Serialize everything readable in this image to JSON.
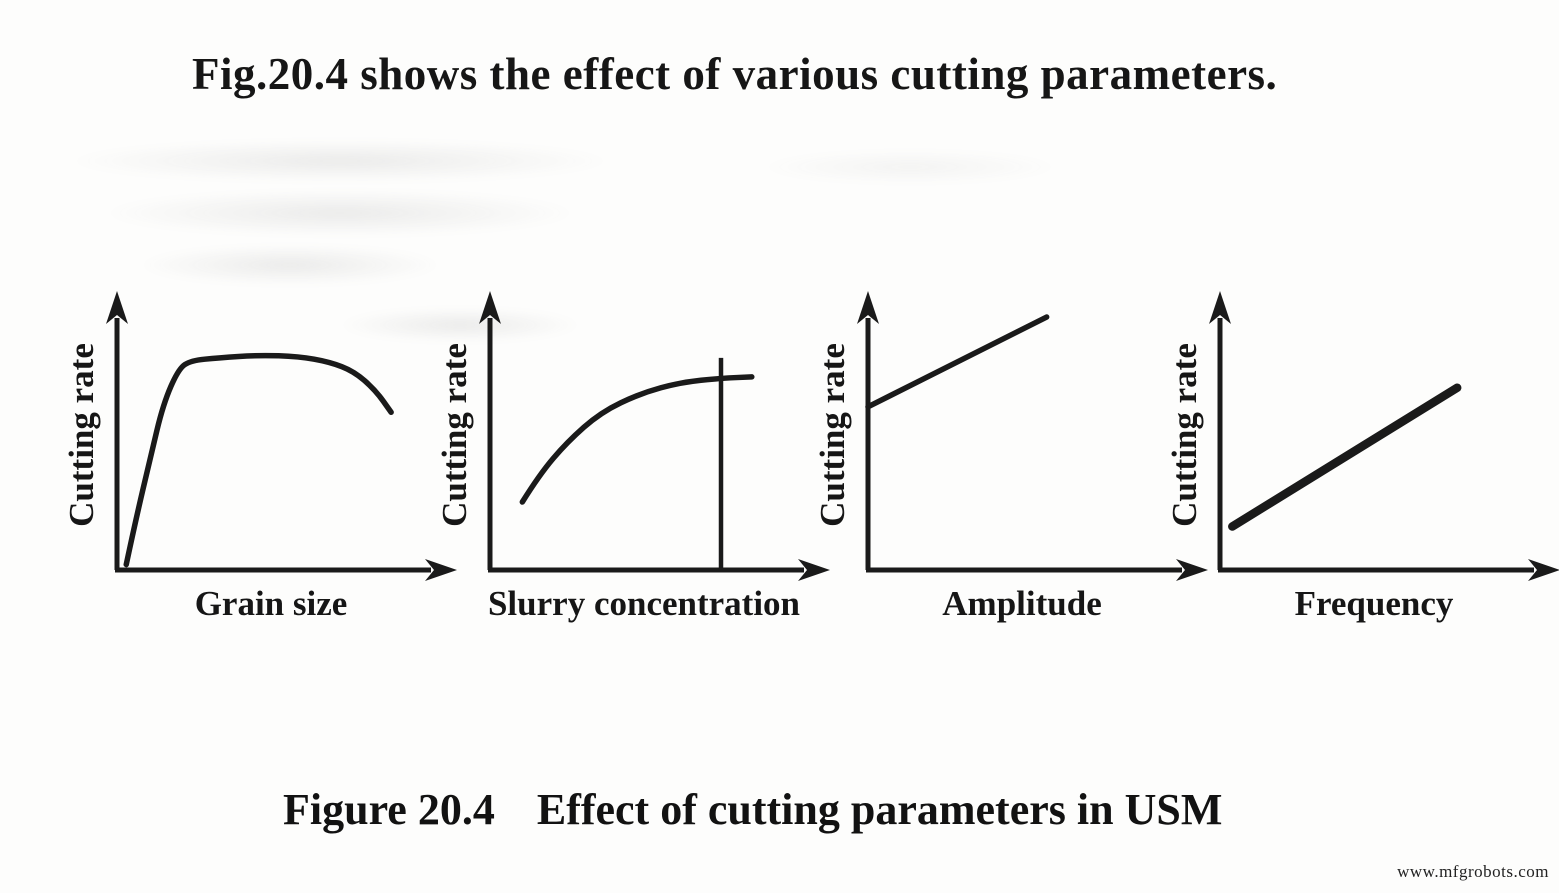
{
  "page": {
    "heading": "Fig.20.4 shows the effect of various cutting parameters.",
    "caption_prefix": "Figure 20.4",
    "caption_text": "Effect of cutting parameters in USM",
    "watermark": "www.mfgrobots.com",
    "ink_color": "#1a1a1a",
    "background_color": "#fdfdfc"
  },
  "chart_data": [
    {
      "type": "line",
      "title": "",
      "xlabel": "Grain size",
      "ylabel": "Cutting rate",
      "x_range": [
        0,
        1
      ],
      "y_range": [
        0,
        1
      ],
      "axes_labeled_with_numbers": false,
      "trend": "Cutting rate rises steeply with grain size, plateaus, then drops off slightly at large grain size",
      "points": [
        [
          0.03,
          0.02
        ],
        [
          0.06,
          0.18
        ],
        [
          0.11,
          0.42
        ],
        [
          0.15,
          0.61
        ],
        [
          0.2,
          0.74
        ],
        [
          0.24,
          0.77
        ],
        [
          0.33,
          0.78
        ],
        [
          0.46,
          0.79
        ],
        [
          0.59,
          0.785
        ],
        [
          0.69,
          0.765
        ],
        [
          0.77,
          0.73
        ],
        [
          0.84,
          0.66
        ],
        [
          0.89,
          0.58
        ]
      ]
    },
    {
      "type": "line",
      "title": "",
      "xlabel": "Slurry concentration",
      "ylabel": "Cutting rate",
      "x_range": [
        0,
        1
      ],
      "y_range": [
        0,
        1
      ],
      "axes_labeled_with_numbers": false,
      "trend": "Cutting rate increases with slurry concentration and saturates; vertical marker line at the saturation concentration",
      "points": [
        [
          0.105,
          0.25
        ],
        [
          0.16,
          0.35
        ],
        [
          0.25,
          0.47
        ],
        [
          0.36,
          0.58
        ],
        [
          0.49,
          0.65
        ],
        [
          0.62,
          0.69
        ],
        [
          0.75,
          0.705
        ],
        [
          0.85,
          0.71
        ]
      ],
      "marker_x": 0.75,
      "marker_height": 0.78
    },
    {
      "type": "line",
      "title": "",
      "xlabel": "Amplitude",
      "ylabel": "Cutting rate",
      "x_range": [
        0,
        1
      ],
      "y_range": [
        0,
        1
      ],
      "axes_labeled_with_numbers": false,
      "trend": "Cutting rate increases linearly with amplitude from a nonzero intercept on the y-axis",
      "points": [
        [
          0.0,
          0.6
        ],
        [
          0.58,
          0.93
        ]
      ]
    },
    {
      "type": "line",
      "title": "",
      "xlabel": "Frequency",
      "ylabel": "Cutting rate",
      "x_range": [
        0,
        1
      ],
      "y_range": [
        0,
        1
      ],
      "axes_labeled_with_numbers": false,
      "trend": "Cutting rate increases linearly with frequency (heavier drawn line)",
      "points": [
        [
          0.04,
          0.16
        ],
        [
          0.77,
          0.67
        ]
      ]
    }
  ]
}
